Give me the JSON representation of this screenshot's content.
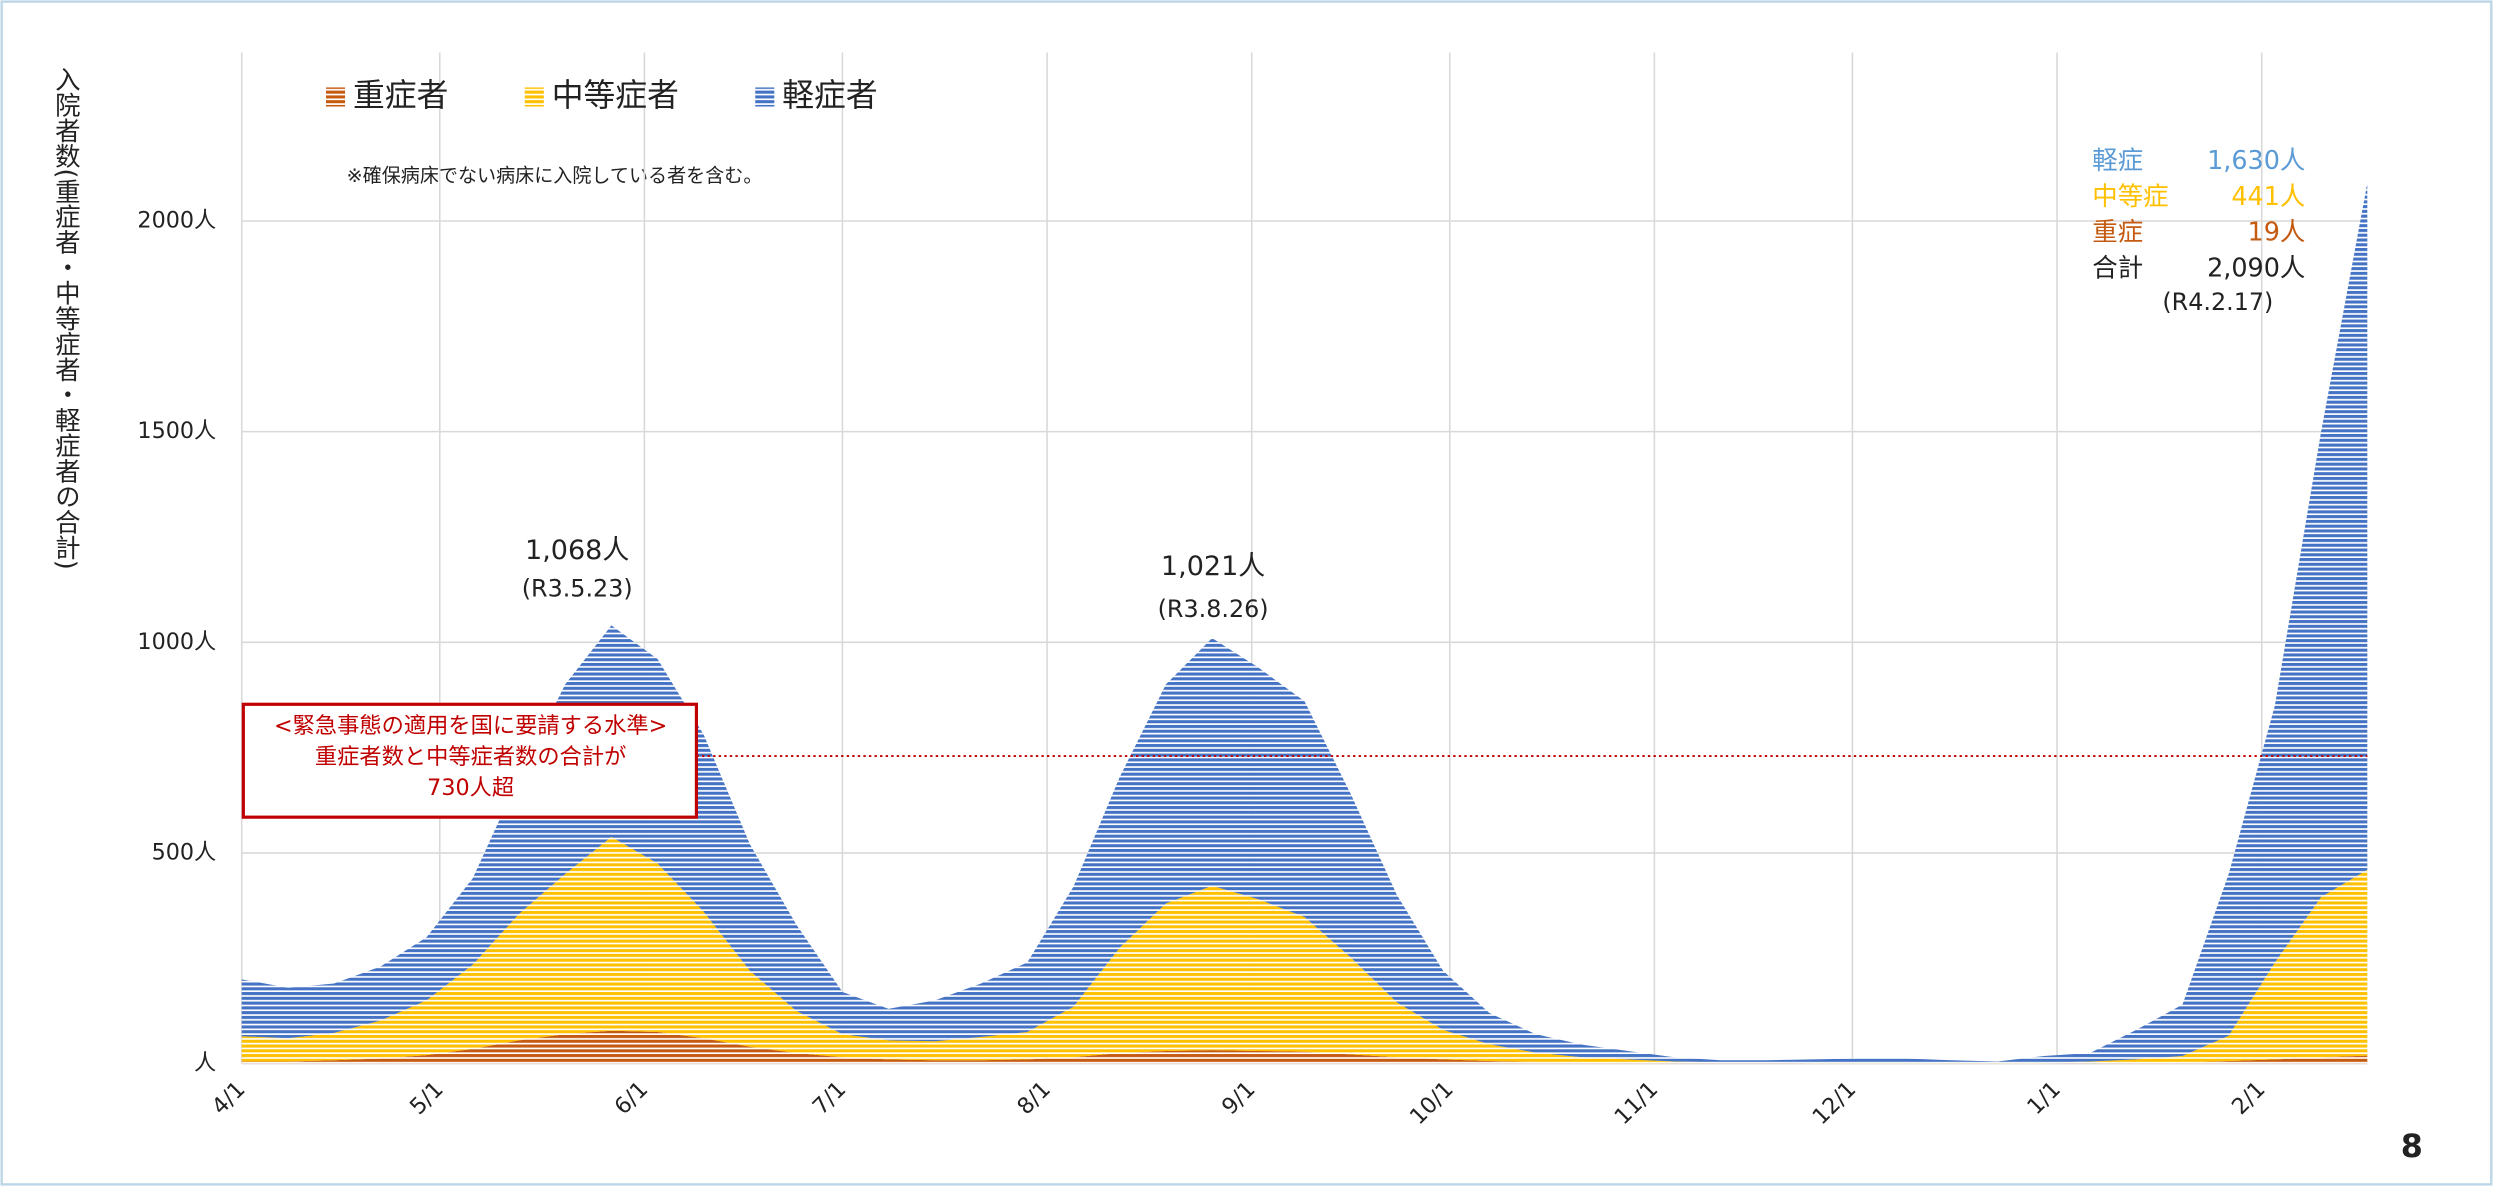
{
  "chart_data": {
    "type": "stacked_area",
    "y_axis_label": "入院者数(重症者・中等症者・軽症者の合計)",
    "note": "※確保病床でない病床に入院している者を含む。",
    "x": [
      0,
      7,
      14,
      21,
      28,
      35,
      42,
      49,
      56,
      63,
      70,
      77,
      84,
      91,
      98,
      105,
      112,
      119,
      126,
      133,
      140,
      147,
      154,
      161,
      168,
      175,
      182,
      189,
      196,
      203,
      210,
      217,
      224,
      231,
      238,
      245,
      252,
      259,
      266,
      273,
      280,
      287,
      294,
      301,
      308,
      315,
      322
    ],
    "xlim": [
      0,
      322
    ],
    "xticks": [
      {
        "value": 0,
        "label": "4/1"
      },
      {
        "value": 30,
        "label": "5/1"
      },
      {
        "value": 61,
        "label": "6/1"
      },
      {
        "value": 91,
        "label": "7/1"
      },
      {
        "value": 122,
        "label": "8/1"
      },
      {
        "value": 153,
        "label": "9/1"
      },
      {
        "value": 183,
        "label": "10/1"
      },
      {
        "value": 214,
        "label": "11/1"
      },
      {
        "value": 244,
        "label": "12/1"
      },
      {
        "value": 275,
        "label": "1/1"
      },
      {
        "value": 306,
        "label": "2/1"
      }
    ],
    "ylim": [
      0,
      2400
    ],
    "yticks": [
      {
        "value": 0,
        "label": "人"
      },
      {
        "value": 500,
        "label": "500人"
      },
      {
        "value": 1000,
        "label": "1000人"
      },
      {
        "value": 1500,
        "label": "1500人"
      },
      {
        "value": 2000,
        "label": "2000人"
      }
    ],
    "grid": true,
    "legend": "top-left",
    "series": [
      {
        "name": "重症者",
        "color": "#c55a11",
        "values": [
          5,
          5,
          8,
          12,
          20,
          35,
          55,
          70,
          78,
          75,
          60,
          40,
          25,
          15,
          10,
          8,
          8,
          10,
          15,
          25,
          30,
          32,
          30,
          28,
          22,
          15,
          10,
          6,
          4,
          3,
          2,
          1,
          1,
          1,
          0,
          0,
          0,
          0,
          0,
          0,
          1,
          2,
          3,
          6,
          10,
          15,
          19
        ]
      },
      {
        "name": "中等症者",
        "color": "#ffc000",
        "values": [
          60,
          55,
          65,
          90,
          130,
          200,
          300,
          380,
          460,
          400,
          300,
          180,
          100,
          55,
          45,
          45,
          55,
          65,
          120,
          250,
          350,
          390,
          360,
          320,
          230,
          130,
          70,
          40,
          22,
          12,
          8,
          4,
          2,
          2,
          2,
          2,
          2,
          1,
          1,
          2,
          4,
          8,
          15,
          60,
          230,
          380,
          441
        ]
      },
      {
        "name": "軽症者",
        "color": "#4472c4",
        "values": [
          135,
          120,
          117,
          128,
          150,
          205,
          325,
          450,
          502,
          485,
          420,
          300,
          205,
          100,
          75,
          97,
          127,
          165,
          285,
          405,
          520,
          588,
          550,
          512,
          388,
          255,
          140,
          74,
          44,
          30,
          20,
          10,
          5,
          5,
          8,
          10,
          10,
          7,
          4,
          16,
          20,
          70,
          122,
          384,
          610,
          1105,
          1630
        ]
      }
    ],
    "peaks": [
      {
        "value": "1,068人",
        "date": "(R3.5.23)"
      },
      {
        "value": "1,021人",
        "date": "(R3.8.26)"
      }
    ],
    "threshold": {
      "value": 730,
      "lines": [
        "<緊急事態の適用を国に要請する水準>",
        "重症者数と中等症者数の合計が",
        "730人超"
      ]
    },
    "summary": [
      {
        "label": "軽症",
        "value": "1,630人",
        "color": "#5b9bd5"
      },
      {
        "label": "中等症",
        "value": "441人",
        "color": "#ffc000"
      },
      {
        "label": "重症",
        "value": "19人",
        "color": "#c55a11"
      },
      {
        "label": "合計",
        "value": "2,090人",
        "color": "#222222"
      }
    ],
    "summary_date": "(R4.2.17)",
    "page_number": "8"
  }
}
